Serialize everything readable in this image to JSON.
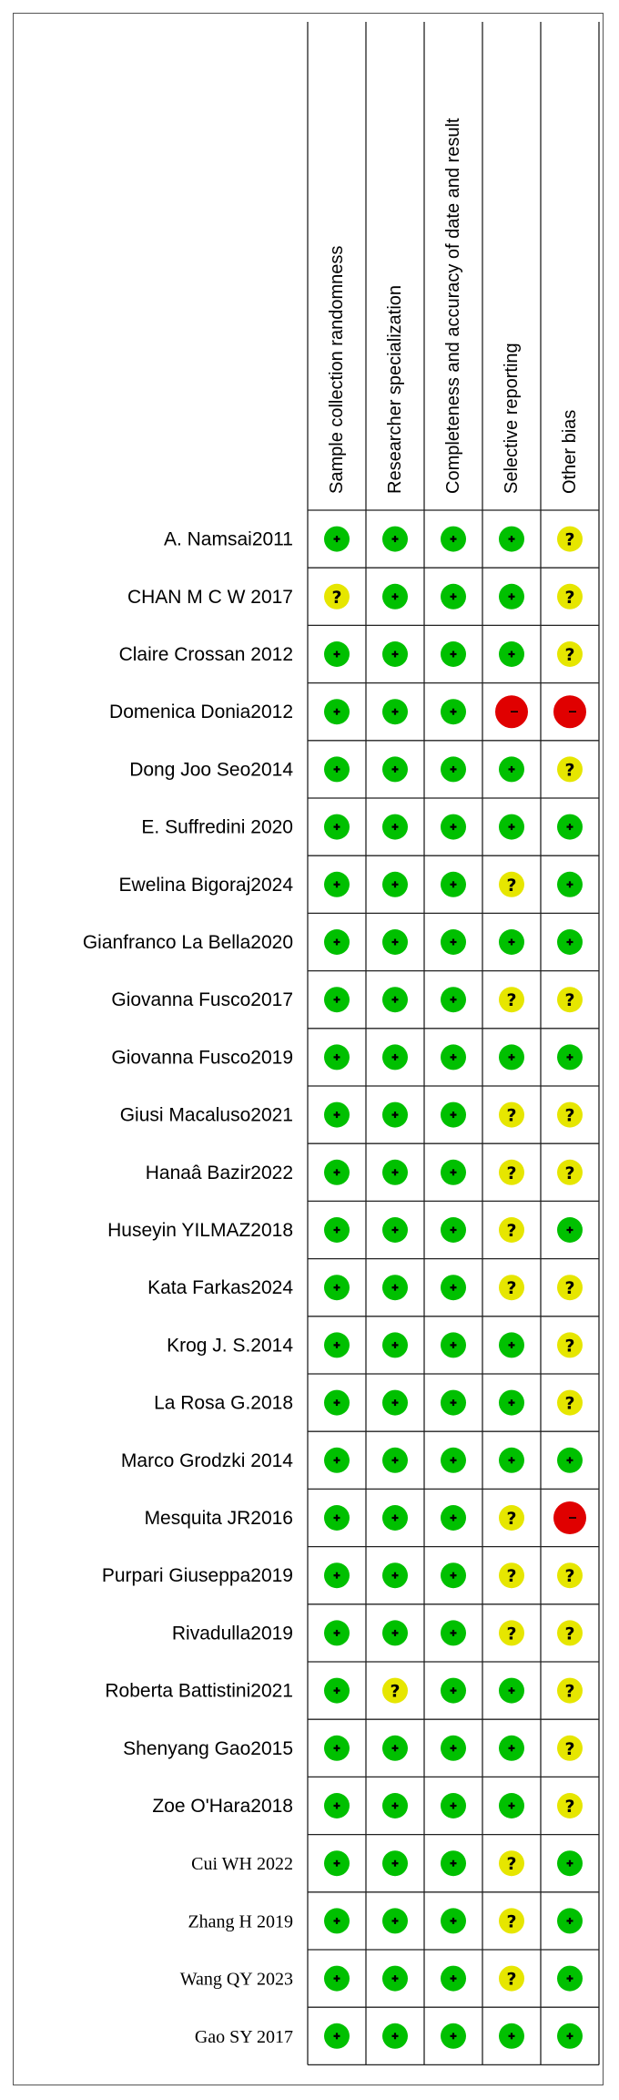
{
  "chart_data": {
    "type": "table",
    "columns": [
      "Sample collection randomness",
      "Researcher specialization",
      "Completeness and accuracy of date and result",
      "Selective reporting",
      "Other bias"
    ],
    "legend": {
      "low": {
        "symbol": "+",
        "color": "#00c000"
      },
      "unclear": {
        "symbol": "?",
        "color": "#e6e600"
      },
      "high": {
        "symbol": "−",
        "color": "#e00000"
      }
    },
    "rows": [
      {
        "study": "A. Namsai2011",
        "ratings": [
          "low",
          "low",
          "low",
          "low",
          "unclear"
        ],
        "font": "sans"
      },
      {
        "study": "CHAN M C W 2017",
        "ratings": [
          "unclear",
          "low",
          "low",
          "low",
          "unclear"
        ],
        "font": "sans"
      },
      {
        "study": "Claire  Crossan 2012",
        "ratings": [
          "low",
          "low",
          "low",
          "low",
          "unclear"
        ],
        "font": "sans"
      },
      {
        "study": "Domenica Donia2012",
        "ratings": [
          "low",
          "low",
          "low",
          "high",
          "high"
        ],
        "font": "sans"
      },
      {
        "study": "Dong Joo Seo2014",
        "ratings": [
          "low",
          "low",
          "low",
          "low",
          "unclear"
        ],
        "font": "sans"
      },
      {
        "study": "E. Suffredini  2020",
        "ratings": [
          "low",
          "low",
          "low",
          "low",
          "low"
        ],
        "font": "sans"
      },
      {
        "study": "Ewelina Bigoraj2024",
        "ratings": [
          "low",
          "low",
          "low",
          "unclear",
          "low"
        ],
        "font": "sans"
      },
      {
        "study": "Gianfranco  La Bella2020",
        "ratings": [
          "low",
          "low",
          "low",
          "low",
          "low"
        ],
        "font": "sans"
      },
      {
        "study": "Giovanna Fusco2017",
        "ratings": [
          "low",
          "low",
          "low",
          "unclear",
          "unclear"
        ],
        "font": "sans"
      },
      {
        "study": "Giovanna Fusco2019",
        "ratings": [
          "low",
          "low",
          "low",
          "low",
          "low"
        ],
        "font": "sans"
      },
      {
        "study": "Giusi  Macaluso2021",
        "ratings": [
          "low",
          "low",
          "low",
          "unclear",
          "unclear"
        ],
        "font": "sans"
      },
      {
        "study": "Hanaâ Bazir2022",
        "ratings": [
          "low",
          "low",
          "low",
          "unclear",
          "unclear"
        ],
        "font": "sans"
      },
      {
        "study": "Huseyin YILMAZ2018",
        "ratings": [
          "low",
          "low",
          "low",
          "unclear",
          "low"
        ],
        "font": "sans"
      },
      {
        "study": "Kata Farkas2024",
        "ratings": [
          "low",
          "low",
          "low",
          "unclear",
          "unclear"
        ],
        "font": "sans"
      },
      {
        "study": "Krog  J. S.2014",
        "ratings": [
          "low",
          "low",
          "low",
          "low",
          "unclear"
        ],
        "font": "sans"
      },
      {
        "study": "La Rosa  G.2018",
        "ratings": [
          "low",
          "low",
          "low",
          "low",
          "unclear"
        ],
        "font": "sans"
      },
      {
        "study": "Marco Grodzki 2014",
        "ratings": [
          "low",
          "low",
          "low",
          "low",
          "low"
        ],
        "font": "sans"
      },
      {
        "study": "Mesquita JR2016",
        "ratings": [
          "low",
          "low",
          "low",
          "unclear",
          "high"
        ],
        "font": "sans"
      },
      {
        "study": "Purpari  Giuseppa2019",
        "ratings": [
          "low",
          "low",
          "low",
          "unclear",
          "unclear"
        ],
        "font": "sans"
      },
      {
        "study": "Rivadulla2019",
        "ratings": [
          "low",
          "low",
          "low",
          "unclear",
          "unclear"
        ],
        "font": "sans"
      },
      {
        "study": "Roberta Battistini2021",
        "ratings": [
          "low",
          "unclear",
          "low",
          "low",
          "unclear"
        ],
        "font": "sans"
      },
      {
        "study": "Shenyang Gao2015",
        "ratings": [
          "low",
          "low",
          "low",
          "low",
          "unclear"
        ],
        "font": "sans"
      },
      {
        "study": "Zoe O'Hara2018",
        "ratings": [
          "low",
          "low",
          "low",
          "low",
          "unclear"
        ],
        "font": "sans"
      },
      {
        "study": "Cui WH  2022",
        "ratings": [
          "low",
          "low",
          "low",
          "unclear",
          "low"
        ],
        "font": "serif"
      },
      {
        "study": "Zhang H  2019",
        "ratings": [
          "low",
          "low",
          "low",
          "unclear",
          "low"
        ],
        "font": "serif"
      },
      {
        "study": "Wang QY  2023",
        "ratings": [
          "low",
          "low",
          "low",
          "unclear",
          "low"
        ],
        "font": "serif"
      },
      {
        "study": "Gao SY  2017",
        "ratings": [
          "low",
          "low",
          "low",
          "low",
          "low"
        ],
        "font": "serif"
      }
    ]
  }
}
